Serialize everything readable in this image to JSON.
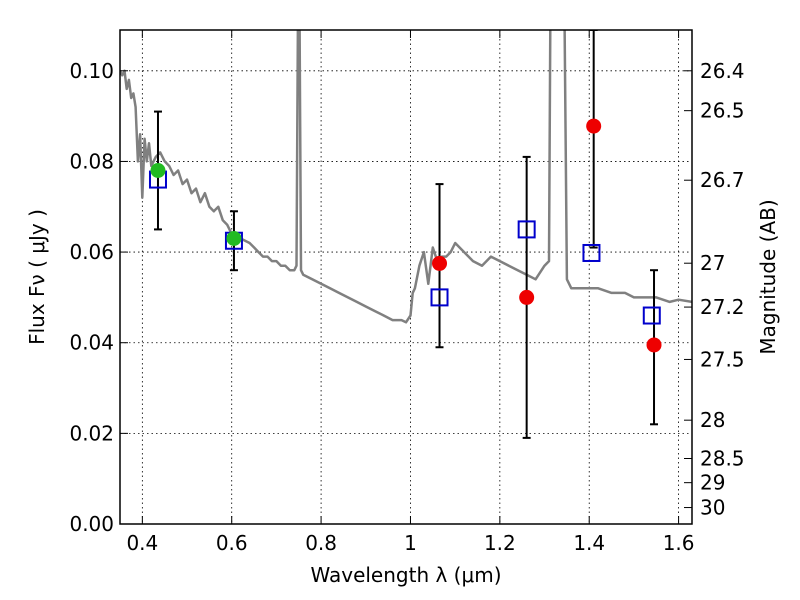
{
  "chart_data": {
    "type": "scatter",
    "title": "",
    "xlabel": "Wavelength  λ (μm)",
    "ylabel": "Flux  Fν  ( μJy )",
    "y2label": "Magnitude (AB)",
    "xlim": [
      0.35,
      1.63
    ],
    "ylim": [
      0.0,
      0.109
    ],
    "grid": true,
    "x_ticks": [
      {
        "v": 0.4,
        "label": "0.4"
      },
      {
        "v": 0.6,
        "label": "0.6"
      },
      {
        "v": 0.8,
        "label": "0.8"
      },
      {
        "v": 1.0,
        "label": "1"
      },
      {
        "v": 1.2,
        "label": "1.2"
      },
      {
        "v": 1.4,
        "label": "1.4"
      },
      {
        "v": 1.6,
        "label": "1.6"
      }
    ],
    "y_ticks": [
      {
        "v": 0.0,
        "label": "0.00"
      },
      {
        "v": 0.02,
        "label": "0.02"
      },
      {
        "v": 0.04,
        "label": "0.04"
      },
      {
        "v": 0.06,
        "label": "0.06"
      },
      {
        "v": 0.08,
        "label": "0.08"
      },
      {
        "v": 0.1,
        "label": "0.10"
      }
    ],
    "mag_ticks": [
      {
        "v": 26.4,
        "label": "26.4"
      },
      {
        "v": 26.5,
        "label": "26.5"
      },
      {
        "v": 26.7,
        "label": "26.7"
      },
      {
        "v": 27.0,
        "label": "27"
      },
      {
        "v": 27.2,
        "label": "27.2"
      },
      {
        "v": 27.5,
        "label": "27.5"
      },
      {
        "v": 28.0,
        "label": "28"
      },
      {
        "v": 28.5,
        "label": "28.5"
      },
      {
        "v": 29.0,
        "label": "29"
      },
      {
        "v": 30.0,
        "label": "30"
      }
    ],
    "series": [
      {
        "type": "line",
        "color": "#808080",
        "x": [
          0.35,
          0.355,
          0.36,
          0.365,
          0.37,
          0.375,
          0.38,
          0.385,
          0.39,
          0.395,
          0.4,
          0.405,
          0.41,
          0.415,
          0.42,
          0.425,
          0.43,
          0.44,
          0.45,
          0.46,
          0.47,
          0.48,
          0.49,
          0.5,
          0.51,
          0.52,
          0.53,
          0.54,
          0.55,
          0.56,
          0.57,
          0.58,
          0.59,
          0.6,
          0.61,
          0.62,
          0.63,
          0.64,
          0.65,
          0.66,
          0.67,
          0.68,
          0.69,
          0.7,
          0.71,
          0.72,
          0.73,
          0.74,
          0.745,
          0.748,
          0.75,
          0.752,
          0.755,
          0.76,
          0.78,
          0.8,
          0.82,
          0.84,
          0.86,
          0.88,
          0.9,
          0.92,
          0.94,
          0.96,
          0.98,
          0.99,
          1.0,
          1.005,
          1.01,
          1.02,
          1.03,
          1.04,
          1.05,
          1.06,
          1.07,
          1.08,
          1.09,
          1.1,
          1.12,
          1.14,
          1.16,
          1.18,
          1.2,
          1.22,
          1.24,
          1.26,
          1.28,
          1.3,
          1.31,
          1.313,
          1.316,
          1.32,
          1.325,
          1.33,
          1.335,
          1.34,
          1.345,
          1.35,
          1.36,
          1.38,
          1.4,
          1.42,
          1.45,
          1.48,
          1.5,
          1.52,
          1.55,
          1.58,
          1.6,
          1.63
        ],
        "y": [
          0.1,
          0.099,
          0.1,
          0.096,
          0.098,
          0.094,
          0.095,
          0.092,
          0.08,
          0.086,
          0.072,
          0.085,
          0.08,
          0.084,
          0.079,
          0.08,
          0.081,
          0.082,
          0.08,
          0.079,
          0.077,
          0.078,
          0.075,
          0.076,
          0.073,
          0.074,
          0.071,
          0.073,
          0.07,
          0.069,
          0.07,
          0.067,
          0.066,
          0.064,
          0.064,
          0.063,
          0.0625,
          0.062,
          0.061,
          0.06,
          0.059,
          0.059,
          0.058,
          0.058,
          0.057,
          0.057,
          0.056,
          0.056,
          0.057,
          0.11,
          0.11,
          0.11,
          0.056,
          0.055,
          0.054,
          0.053,
          0.052,
          0.051,
          0.05,
          0.049,
          0.048,
          0.047,
          0.046,
          0.045,
          0.045,
          0.0445,
          0.046,
          0.051,
          0.052,
          0.057,
          0.06,
          0.053,
          0.061,
          0.058,
          0.059,
          0.059,
          0.06,
          0.062,
          0.06,
          0.058,
          0.057,
          0.059,
          0.058,
          0.057,
          0.056,
          0.055,
          0.054,
          0.057,
          0.058,
          0.11,
          0.11,
          0.11,
          0.11,
          0.11,
          0.11,
          0.11,
          0.11,
          0.054,
          0.052,
          0.052,
          0.052,
          0.052,
          0.051,
          0.051,
          0.05,
          0.05,
          0.05,
          0.049,
          0.0495,
          0.049
        ]
      },
      {
        "type": "errorbar",
        "color": "#000000",
        "points": [
          {
            "x": 0.435,
            "lo": 0.065,
            "hi": 0.091
          },
          {
            "x": 0.605,
            "lo": 0.056,
            "hi": 0.069
          },
          {
            "x": 1.065,
            "lo": 0.039,
            "hi": 0.075
          },
          {
            "x": 1.26,
            "lo": 0.019,
            "hi": 0.081
          },
          {
            "x": 1.41,
            "lo": 0.061,
            "hi": 0.109
          },
          {
            "x": 1.545,
            "lo": 0.022,
            "hi": 0.056
          }
        ]
      },
      {
        "type": "scatter",
        "marker": "square-open",
        "color": "#0000cc",
        "x": [
          0.435,
          0.605,
          1.065,
          1.26,
          1.405,
          1.54
        ],
        "y": [
          0.076,
          0.0625,
          0.05,
          0.065,
          0.0598,
          0.046
        ]
      },
      {
        "type": "scatter",
        "marker": "circle",
        "color": "#ee0000",
        "x": [
          1.065,
          1.26,
          1.41,
          1.545
        ],
        "y": [
          0.0575,
          0.05,
          0.0878,
          0.0395
        ]
      },
      {
        "type": "scatter",
        "marker": "circle",
        "color": "#22bb22",
        "x": [
          0.435,
          0.605
        ],
        "y": [
          0.078,
          0.063
        ]
      }
    ]
  }
}
